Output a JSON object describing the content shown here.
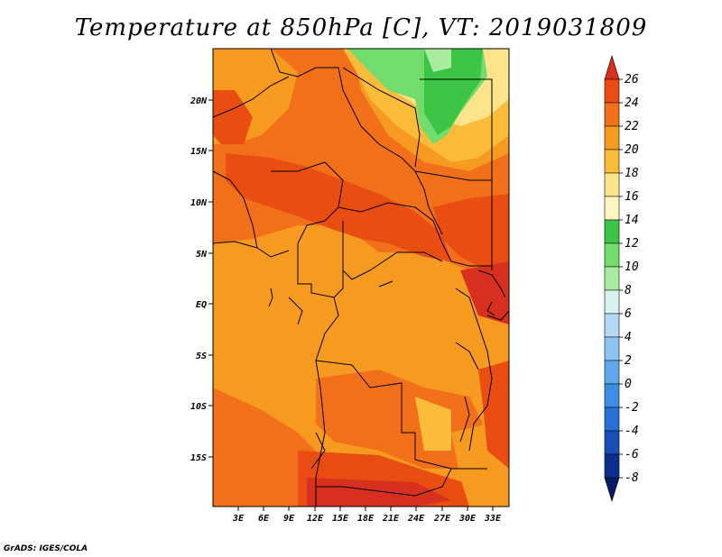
{
  "title": "Temperature at 850hPa [C], VT: 2019031809",
  "footer": "GrADS: IGES/COLA",
  "lat_labels": [
    "20N",
    "15N",
    "10N",
    "5N",
    "EQ",
    "5S",
    "10S",
    "15S"
  ],
  "lon_labels": [
    "3E",
    "6E",
    "9E",
    "12E",
    "15E",
    "18E",
    "21E",
    "24E",
    "27E",
    "30E",
    "33E"
  ],
  "colorbar_labels": [
    "26",
    "24",
    "22",
    "20",
    "18",
    "16",
    "14",
    "12",
    "10",
    "8",
    "6",
    "4",
    "2",
    "0",
    "-2",
    "-4",
    "-6",
    "-8"
  ],
  "colorbar_colors": [
    "#d7301f",
    "#e94d12",
    "#f3701a",
    "#f79a20",
    "#fbbc3a",
    "#fde38a",
    "#fdf6be",
    "#3cc445",
    "#72dc6c",
    "#a8eca0",
    "#d6f3ee",
    "#b3d9f7",
    "#8cc4f2",
    "#5ea9ec",
    "#3b8ee3",
    "#2670d6",
    "#184fb5",
    "#0c2f8f",
    "#061a66"
  ]
}
